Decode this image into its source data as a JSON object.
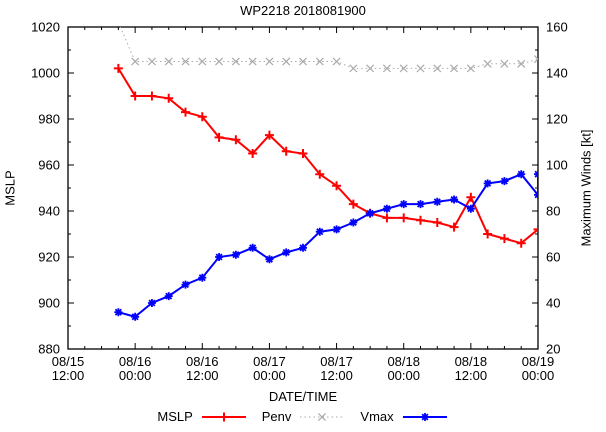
{
  "title": "WP2218 2018081900",
  "axes": {
    "x_label": "DATE/TIME",
    "y_left_label": "MSLP",
    "y_right_label": "Maximum Winds [kt]",
    "y_left_range": [
      880,
      1020
    ],
    "y_right_range": [
      20,
      160
    ],
    "y_major_step": 20,
    "y_minor_step": 10,
    "x_range_hours": [
      0,
      84
    ],
    "x_major_step_hours": 12,
    "x_minor_step_hours": 3,
    "y_left_tick_labels": [
      880,
      900,
      920,
      940,
      960,
      980,
      1000,
      1020
    ],
    "y_right_tick_labels": [
      20,
      40,
      60,
      80,
      100,
      120,
      140,
      160
    ],
    "x_major_ticks": [
      {
        "date": "08/15",
        "time": "12:00"
      },
      {
        "date": "08/16",
        "time": "00:00"
      },
      {
        "date": "08/16",
        "time": "12:00"
      },
      {
        "date": "08/17",
        "time": "00:00"
      },
      {
        "date": "08/17",
        "time": "12:00"
      },
      {
        "date": "08/18",
        "time": "00:00"
      },
      {
        "date": "08/18",
        "time": "12:00"
      },
      {
        "date": "08/19",
        "time": "00:00"
      }
    ]
  },
  "legend": {
    "items": [
      {
        "label": "MSLP",
        "color": "#ff0000",
        "line": "solid",
        "marker": "plus"
      },
      {
        "label": "Penv",
        "color": "#aaaaaa",
        "line": "dotted",
        "marker": "cross"
      },
      {
        "label": "Vmax",
        "color": "#0000ff",
        "line": "solid",
        "marker": "asterisk"
      }
    ]
  },
  "chart_data": {
    "type": "line",
    "title": "WP2218 2018081900",
    "xlabel": "DATE/TIME",
    "ylabel_left": "MSLP",
    "ylabel_right": "Maximum Winds [kt]",
    "ylim_left": [
      880,
      1020
    ],
    "ylim_right": [
      20,
      160
    ],
    "x_unit": "hours after 08/15 12:00, points every 3 h",
    "grid": false,
    "legend_position": "below",
    "series": [
      {
        "name": "MSLP",
        "axis": "left",
        "color": "#ff0000",
        "line": "solid",
        "marker": "plus",
        "width": 2,
        "t": [
          9,
          12,
          15,
          18,
          21,
          24,
          27,
          30,
          33,
          36,
          39,
          42,
          45,
          48,
          51,
          54,
          57,
          60,
          63,
          66,
          69,
          72,
          75,
          78,
          81,
          84
        ],
        "values": [
          1002,
          990,
          990,
          989,
          983,
          981,
          972,
          971,
          965,
          973,
          966,
          965,
          956,
          951,
          943,
          939,
          937,
          937,
          936,
          935,
          933,
          946,
          930,
          928,
          926,
          932
        ]
      },
      {
        "name": "Penv",
        "axis": "left",
        "color": "#aaaaaa",
        "line": "dotted",
        "marker": "cross",
        "width": 1,
        "t": [
          9,
          12,
          15,
          18,
          21,
          24,
          27,
          30,
          33,
          36,
          39,
          42,
          45,
          48,
          51,
          54,
          57,
          60,
          63,
          66,
          69,
          72,
          75,
          78,
          81,
          84
        ],
        "values": [
          1022,
          1005,
          1005,
          1005,
          1005,
          1005,
          1005,
          1005,
          1005,
          1005,
          1005,
          1005,
          1005,
          1005,
          1002,
          1002,
          1002,
          1002,
          1002,
          1002,
          1002,
          1002,
          1004,
          1004,
          1004,
          1006
        ]
      },
      {
        "name": "Vmax",
        "axis": "right",
        "color": "#0000ff",
        "line": "solid",
        "marker": "asterisk",
        "width": 2,
        "t": [
          9,
          12,
          15,
          18,
          21,
          24,
          27,
          30,
          33,
          36,
          39,
          42,
          45,
          48,
          51,
          54,
          57,
          60,
          63,
          66,
          69,
          72,
          75,
          78,
          81,
          84,
          84
        ],
        "values": [
          36,
          34,
          40,
          43,
          48,
          51,
          60,
          61,
          64,
          59,
          62,
          64,
          71,
          72,
          75,
          79,
          81,
          83,
          83,
          84,
          85,
          81,
          92,
          93,
          96,
          87,
          96
        ]
      }
    ]
  }
}
